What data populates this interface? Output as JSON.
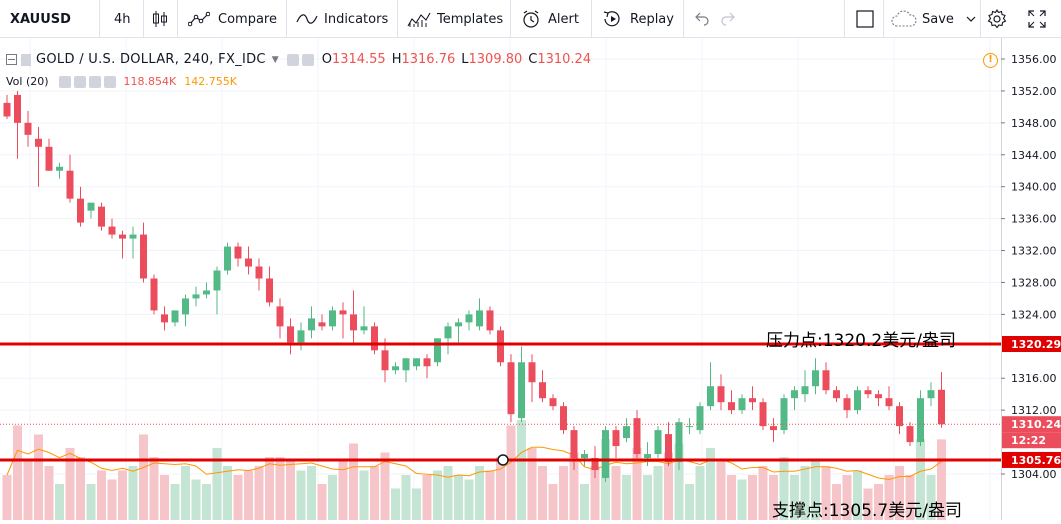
{
  "toolbar": {
    "symbol": "XAUUSD",
    "interval": "4h",
    "compare_label": "Compare",
    "indicators_label": "Indicators",
    "templates_label": "Templates",
    "alert_label": "Alert",
    "replay_label": "Replay",
    "save_label": "Save"
  },
  "legend": {
    "title": "GOLD / U.S. DOLLAR, 240, FX_IDC",
    "o_key": "O",
    "o_val": "1314.55",
    "h_key": "H",
    "h_val": "1316.76",
    "l_key": "L",
    "l_val": "1309.80",
    "c_key": "C",
    "c_val": "1310.24"
  },
  "volume_legend": {
    "label": "Vol (20)",
    "v1": "118.854K",
    "v2": "142.755K"
  },
  "annotations": {
    "resistance": "压力点:1320.2美元/盎司",
    "support": "支撑点:1305.7美元/盎司"
  },
  "price_axis": {
    "ticks": [
      "1356.00",
      "1352.00",
      "1348.00",
      "1344.00",
      "1340.00",
      "1336.00",
      "1332.00",
      "1328.00",
      "1324.00",
      "1316.00",
      "1312.00",
      "1304.00"
    ],
    "labels": {
      "resistance": "1320.29",
      "last": "1310.24",
      "countdown": "12:22",
      "support": "1305.76"
    }
  },
  "colors": {
    "up": "#53b987",
    "down": "#eb4d5c",
    "up_vol": "#c5e5d4",
    "down_vol": "#f6c5ca",
    "hline": "#e00000",
    "grid": "#f0f3fa"
  },
  "chart_data": {
    "type": "candlestick",
    "resistance": 1320.29,
    "support": 1305.76,
    "last_close": 1310.24,
    "ylim": [
      1302,
      1358
    ],
    "candles": [
      [
        1350.5,
        1351.5,
        1348.5,
        1348.8
      ],
      [
        1351.5,
        1352.0,
        1343.5,
        1348.0
      ],
      [
        1348.0,
        1349.5,
        1345.0,
        1346.5
      ],
      [
        1346.0,
        1347.5,
        1340.0,
        1345.0
      ],
      [
        1345.0,
        1346.0,
        1342.0,
        1342.0
      ],
      [
        1342.0,
        1343.0,
        1341.0,
        1342.5
      ],
      [
        1342.0,
        1344.0,
        1338.0,
        1338.5
      ],
      [
        1338.5,
        1340.0,
        1335.0,
        1335.5
      ],
      [
        1337.0,
        1338.0,
        1336.0,
        1338.0
      ],
      [
        1337.5,
        1338.0,
        1334.5,
        1335.0
      ],
      [
        1335.0,
        1336.0,
        1333.5,
        1334.0
      ],
      [
        1334.0,
        1334.5,
        1331.0,
        1333.5
      ],
      [
        1333.5,
        1335.0,
        1331.0,
        1334.0
      ],
      [
        1334.0,
        1335.5,
        1328.0,
        1328.5
      ],
      [
        1328.5,
        1329.0,
        1324.0,
        1324.5
      ],
      [
        1324.0,
        1325.0,
        1322.0,
        1323.0
      ],
      [
        1323.0,
        1324.5,
        1322.5,
        1324.5
      ],
      [
        1324.0,
        1326.5,
        1322.5,
        1326.0
      ],
      [
        1326.0,
        1327.5,
        1325.0,
        1326.5
      ],
      [
        1326.5,
        1328.0,
        1326.0,
        1327.0
      ],
      [
        1327.0,
        1330.0,
        1324.0,
        1329.5
      ],
      [
        1329.5,
        1333.0,
        1329.0,
        1332.5
      ],
      [
        1332.5,
        1333.0,
        1330.0,
        1331.0
      ],
      [
        1331.0,
        1332.5,
        1329.0,
        1330.0
      ],
      [
        1330.0,
        1331.0,
        1327.0,
        1328.5
      ],
      [
        1328.5,
        1330.0,
        1325.0,
        1325.5
      ],
      [
        1325.0,
        1326.0,
        1321.0,
        1322.5
      ],
      [
        1322.5,
        1323.5,
        1319.0,
        1320.5
      ],
      [
        1320.5,
        1323.0,
        1319.5,
        1322.0
      ],
      [
        1322.0,
        1325.0,
        1321.0,
        1323.5
      ],
      [
        1323.0,
        1324.0,
        1322.0,
        1322.5
      ],
      [
        1322.5,
        1325.0,
        1322.0,
        1324.5
      ],
      [
        1324.5,
        1325.5,
        1321.0,
        1324.0
      ],
      [
        1324.0,
        1327.0,
        1320.5,
        1322.0
      ],
      [
        1322.0,
        1325.0,
        1321.5,
        1322.5
      ],
      [
        1322.5,
        1323.0,
        1319.0,
        1319.5
      ],
      [
        1319.5,
        1321.0,
        1315.5,
        1317.0
      ],
      [
        1317.0,
        1318.0,
        1316.5,
        1317.5
      ],
      [
        1317.0,
        1318.5,
        1315.5,
        1318.5
      ],
      [
        1317.5,
        1318.5,
        1317.0,
        1318.5
      ],
      [
        1318.5,
        1319.0,
        1316.0,
        1317.5
      ],
      [
        1318.0,
        1321.0,
        1317.5,
        1321.0
      ],
      [
        1321.0,
        1323.0,
        1319.0,
        1322.5
      ],
      [
        1322.5,
        1323.5,
        1320.5,
        1323.0
      ],
      [
        1323.0,
        1324.5,
        1322.0,
        1324.0
      ],
      [
        1322.5,
        1326.0,
        1322.0,
        1324.5
      ],
      [
        1324.5,
        1325.0,
        1321.5,
        1322.0
      ],
      [
        1322.0,
        1322.5,
        1317.5,
        1318.0
      ],
      [
        1318.0,
        1319.0,
        1310.5,
        1311.5
      ],
      [
        1311.0,
        1320.0,
        1310.5,
        1318.0
      ],
      [
        1318.0,
        1319.0,
        1313.0,
        1315.5
      ],
      [
        1315.5,
        1317.0,
        1313.0,
        1313.5
      ],
      [
        1313.5,
        1314.0,
        1312.0,
        1312.5
      ],
      [
        1312.5,
        1313.0,
        1309.0,
        1309.5
      ],
      [
        1309.5,
        1310.0,
        1304.5,
        1306.0
      ],
      [
        1306.0,
        1307.0,
        1305.0,
        1306.5
      ],
      [
        1306.0,
        1307.5,
        1303.5,
        1304.5
      ],
      [
        1303.5,
        1310.0,
        1303.0,
        1309.5
      ],
      [
        1309.5,
        1310.0,
        1306.0,
        1307.5
      ],
      [
        1308.5,
        1311.0,
        1308.0,
        1310.0
      ],
      [
        1311.0,
        1312.0,
        1306.0,
        1306.5
      ],
      [
        1306.0,
        1308.0,
        1305.0,
        1306.5
      ],
      [
        1306.5,
        1310.0,
        1306.0,
        1309.5
      ],
      [
        1309.0,
        1310.5,
        1305.0,
        1305.5
      ],
      [
        1305.5,
        1311.0,
        1304.5,
        1310.5
      ],
      [
        1310.0,
        1311.0,
        1309.0,
        1310.0
      ],
      [
        1309.5,
        1313.0,
        1309.0,
        1312.5
      ],
      [
        1312.5,
        1318.0,
        1312.0,
        1315.0
      ],
      [
        1315.0,
        1316.5,
        1312.0,
        1313.0
      ],
      [
        1313.0,
        1314.5,
        1311.5,
        1312.0
      ],
      [
        1312.0,
        1314.0,
        1311.5,
        1313.5
      ],
      [
        1313.5,
        1315.0,
        1312.0,
        1313.0
      ],
      [
        1313.0,
        1313.5,
        1309.5,
        1310.0
      ],
      [
        1310.0,
        1311.0,
        1308.0,
        1309.5
      ],
      [
        1309.5,
        1314.0,
        1309.0,
        1313.5
      ],
      [
        1313.5,
        1315.0,
        1312.0,
        1314.5
      ],
      [
        1314.0,
        1317.0,
        1313.0,
        1315.0
      ],
      [
        1315.0,
        1318.5,
        1314.0,
        1317.0
      ],
      [
        1317.0,
        1318.0,
        1314.0,
        1314.5
      ],
      [
        1314.5,
        1315.0,
        1313.0,
        1313.5
      ],
      [
        1313.5,
        1314.0,
        1311.0,
        1312.0
      ],
      [
        1312.0,
        1315.0,
        1311.5,
        1314.5
      ],
      [
        1314.5,
        1315.0,
        1313.5,
        1314.0
      ],
      [
        1314.0,
        1314.5,
        1312.5,
        1313.5
      ],
      [
        1313.5,
        1315.0,
        1312.0,
        1312.5
      ],
      [
        1312.5,
        1313.0,
        1309.0,
        1310.0
      ],
      [
        1310.0,
        1310.5,
        1307.5,
        1308.0
      ],
      [
        1308.0,
        1314.5,
        1307.5,
        1313.5
      ],
      [
        1313.5,
        1315.5,
        1312.5,
        1314.5
      ],
      [
        1314.55,
        1316.76,
        1309.8,
        1310.24
      ]
    ]
  }
}
